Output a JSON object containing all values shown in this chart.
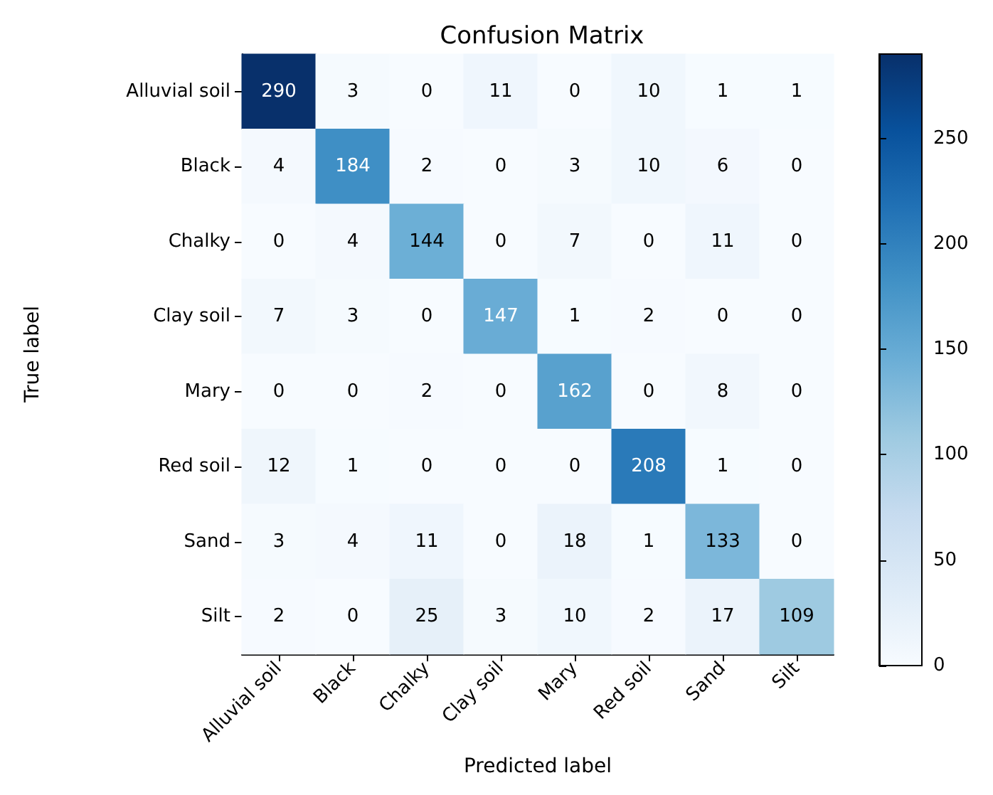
{
  "chart_data": {
    "type": "heatmap",
    "title": "Confusion Matrix",
    "xlabel": "Predicted label",
    "ylabel": "True label",
    "categories": [
      "Alluvial soil",
      "Black",
      "Chalky",
      "Clay soil",
      "Mary",
      "Red soil",
      "Sand",
      "Silt"
    ],
    "y_categories": [
      "Alluvial soil",
      "Black",
      "Chalky",
      "Clay soil",
      "Mary",
      "Red soil",
      "Sand",
      "Silt"
    ],
    "cells": [
      [
        290,
        3,
        0,
        11,
        0,
        10,
        1,
        1
      ],
      [
        4,
        184,
        2,
        0,
        3,
        10,
        6,
        0
      ],
      [
        0,
        4,
        144,
        0,
        7,
        0,
        11,
        0
      ],
      [
        7,
        3,
        0,
        147,
        1,
        2,
        0,
        0
      ],
      [
        0,
        0,
        2,
        0,
        162,
        0,
        8,
        0
      ],
      [
        12,
        1,
        0,
        0,
        0,
        208,
        1,
        0
      ],
      [
        3,
        4,
        11,
        0,
        18,
        1,
        133,
        0
      ],
      [
        2,
        0,
        25,
        3,
        10,
        2,
        17,
        109
      ]
    ],
    "clim": [
      0,
      290
    ],
    "cticks": [
      0,
      50,
      100,
      150,
      200,
      250
    ],
    "data_labels": true,
    "grid": false
  }
}
